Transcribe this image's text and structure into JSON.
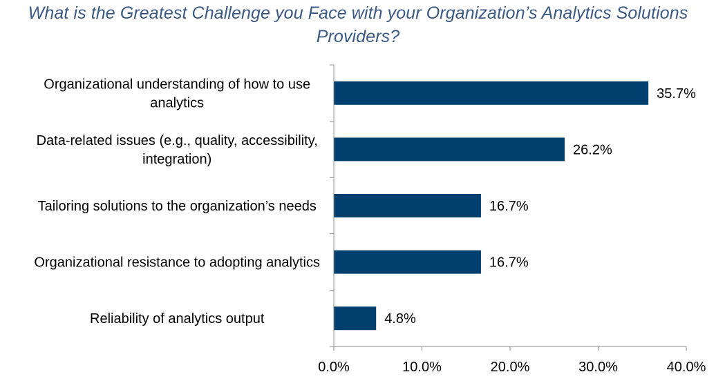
{
  "chart_data": {
    "type": "bar",
    "orientation": "horizontal",
    "title": "What is the Greatest Challenge you Face with your Organization’s Analytics Solutions Providers?",
    "categories": [
      [
        "Organizational understanding of how to use",
        "analytics"
      ],
      [
        "Data-related issues (e.g., quality, accessibility,",
        "integration)"
      ],
      [
        "Tailoring solutions to the organization’s needs"
      ],
      [
        "Organizational resistance to adopting analytics"
      ],
      [
        "Reliability of analytics output"
      ]
    ],
    "values": [
      35.7,
      26.2,
      16.7,
      16.7,
      4.8
    ],
    "value_labels": [
      "35.7%",
      "26.2%",
      "16.7%",
      "16.7%",
      "4.8%"
    ],
    "xlim": [
      0,
      40
    ],
    "x_ticks": [
      0,
      10,
      20,
      30,
      40
    ],
    "x_tick_labels": [
      "0.0%",
      "10.0%",
      "20.0%",
      "30.0%",
      "40.0%"
    ],
    "xlabel": "",
    "ylabel": "",
    "grid": false,
    "legend": "none",
    "colors": {
      "bar": "#003f6e",
      "title": "#3a5a84",
      "text": "#000000",
      "axis": "#8c8c8c"
    }
  }
}
